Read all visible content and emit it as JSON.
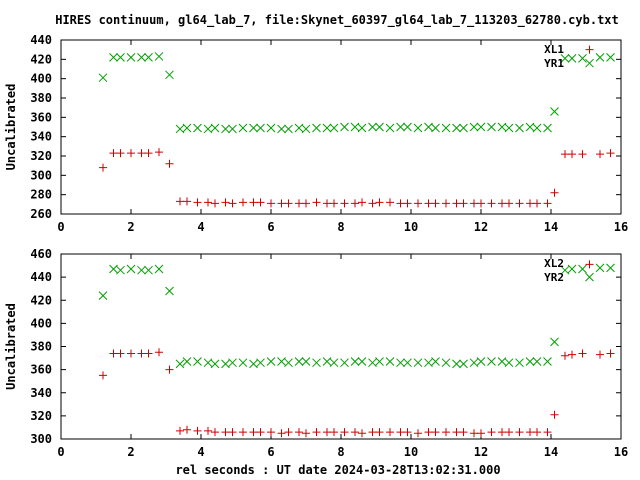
{
  "title": "HIRES continuum, gl64_lab_7, file:Skynet_60397_gl64_lab_7_113203_62780.cyb.txt",
  "xlabel": "rel seconds : UT date 2024-03-28T13:02:31.000",
  "colors": {
    "XL": "#00a000",
    "YR": "#d00000"
  },
  "chart_data": [
    {
      "type": "scatter",
      "title": "HIRES continuum, gl64_lab_7, file:Skynet_60397_gl64_lab_7_113203_62780.cyb.txt",
      "xlabel": "",
      "ylabel": "Uncalibrated",
      "xlim": [
        0,
        16
      ],
      "ylim": [
        260,
        440
      ],
      "xticks": [
        0,
        2,
        4,
        6,
        8,
        10,
        12,
        14,
        16
      ],
      "yticks": [
        260,
        280,
        300,
        320,
        340,
        360,
        380,
        400,
        420,
        440
      ],
      "grid": false,
      "legend": "top-right",
      "series": [
        {
          "name": "XL1",
          "marker": "x",
          "color": "#00a000",
          "x": [
            1.2,
            1.5,
            1.7,
            2.0,
            2.3,
            2.5,
            2.8,
            3.1,
            3.4,
            3.6,
            3.9,
            4.2,
            4.4,
            4.7,
            4.9,
            5.2,
            5.5,
            5.7,
            6.0,
            6.3,
            6.5,
            6.8,
            7.0,
            7.3,
            7.6,
            7.8,
            8.1,
            8.4,
            8.6,
            8.9,
            9.1,
            9.4,
            9.7,
            9.9,
            10.2,
            10.5,
            10.7,
            11.0,
            11.3,
            11.5,
            11.8,
            12.0,
            12.3,
            12.6,
            12.8,
            13.1,
            13.4,
            13.6,
            13.9,
            14.1,
            14.4,
            14.6,
            14.9,
            15.1,
            15.4,
            15.7
          ],
          "y": [
            401,
            422,
            422,
            422,
            422,
            422,
            423,
            404,
            348,
            349,
            349,
            348,
            349,
            348,
            348,
            349,
            349,
            349,
            349,
            348,
            348,
            349,
            348,
            349,
            349,
            349,
            350,
            350,
            349,
            350,
            350,
            349,
            350,
            350,
            349,
            350,
            349,
            349,
            349,
            349,
            350,
            350,
            350,
            350,
            349,
            349,
            350,
            349,
            349,
            366,
            421,
            421,
            421,
            416,
            422,
            422
          ]
        },
        {
          "name": "YR1",
          "marker": "+",
          "color": "#d00000",
          "x": [
            1.2,
            1.5,
            1.7,
            2.0,
            2.3,
            2.5,
            2.8,
            3.1,
            3.4,
            3.6,
            3.9,
            4.2,
            4.4,
            4.7,
            4.9,
            5.2,
            5.5,
            5.7,
            6.0,
            6.3,
            6.5,
            6.8,
            7.0,
            7.3,
            7.6,
            7.8,
            8.1,
            8.4,
            8.6,
            8.9,
            9.1,
            9.4,
            9.7,
            9.9,
            10.2,
            10.5,
            10.7,
            11.0,
            11.3,
            11.5,
            11.8,
            12.0,
            12.3,
            12.6,
            12.8,
            13.1,
            13.4,
            13.6,
            13.9,
            14.1,
            14.4,
            14.6,
            14.9,
            15.1,
            15.4,
            15.7
          ],
          "y": [
            308,
            323,
            323,
            323,
            323,
            323,
            324,
            312,
            273,
            273,
            272,
            272,
            271,
            272,
            271,
            272,
            272,
            272,
            271,
            271,
            271,
            271,
            271,
            272,
            271,
            271,
            271,
            271,
            272,
            271,
            272,
            272,
            271,
            271,
            271,
            271,
            271,
            271,
            271,
            271,
            271,
            271,
            271,
            271,
            271,
            271,
            271,
            271,
            271,
            282,
            322,
            322,
            322,
            430,
            322,
            323
          ]
        }
      ]
    },
    {
      "type": "scatter",
      "xlabel": "rel seconds : UT date 2024-03-28T13:02:31.000",
      "ylabel": "Uncalibrated",
      "xlim": [
        0,
        16
      ],
      "ylim": [
        300,
        460
      ],
      "xticks": [
        0,
        2,
        4,
        6,
        8,
        10,
        12,
        14,
        16
      ],
      "yticks": [
        300,
        320,
        340,
        360,
        380,
        400,
        420,
        440,
        460
      ],
      "grid": false,
      "legend": "top-right",
      "series": [
        {
          "name": "XL2",
          "marker": "x",
          "color": "#00a000",
          "x": [
            1.2,
            1.5,
            1.7,
            2.0,
            2.3,
            2.5,
            2.8,
            3.1,
            3.4,
            3.6,
            3.9,
            4.2,
            4.4,
            4.7,
            4.9,
            5.2,
            5.5,
            5.7,
            6.0,
            6.3,
            6.5,
            6.8,
            7.0,
            7.3,
            7.6,
            7.8,
            8.1,
            8.4,
            8.6,
            8.9,
            9.1,
            9.4,
            9.7,
            9.9,
            10.2,
            10.5,
            10.7,
            11.0,
            11.3,
            11.5,
            11.8,
            12.0,
            12.3,
            12.6,
            12.8,
            13.1,
            13.4,
            13.6,
            13.9,
            14.1,
            14.4,
            14.6,
            14.9,
            15.1,
            15.4,
            15.7
          ],
          "y": [
            424,
            447,
            446,
            447,
            446,
            446,
            447,
            428,
            365,
            367,
            367,
            366,
            365,
            365,
            366,
            366,
            365,
            366,
            367,
            367,
            366,
            367,
            367,
            366,
            367,
            366,
            366,
            367,
            367,
            366,
            367,
            367,
            366,
            366,
            366,
            366,
            367,
            366,
            365,
            365,
            366,
            367,
            367,
            367,
            366,
            366,
            367,
            367,
            367,
            384,
            446,
            447,
            447,
            440,
            448,
            448
          ]
        },
        {
          "name": "YR2",
          "marker": "+",
          "color": "#d00000",
          "x": [
            1.2,
            1.5,
            1.7,
            2.0,
            2.3,
            2.5,
            2.8,
            3.1,
            3.4,
            3.6,
            3.9,
            4.2,
            4.4,
            4.7,
            4.9,
            5.2,
            5.5,
            5.7,
            6.0,
            6.3,
            6.5,
            6.8,
            7.0,
            7.3,
            7.6,
            7.8,
            8.1,
            8.4,
            8.6,
            8.9,
            9.1,
            9.4,
            9.7,
            9.9,
            10.2,
            10.5,
            10.7,
            11.0,
            11.3,
            11.5,
            11.8,
            12.0,
            12.3,
            12.6,
            12.8,
            13.1,
            13.4,
            13.6,
            13.9,
            14.1,
            14.4,
            14.6,
            14.9,
            15.1,
            15.4,
            15.7
          ],
          "y": [
            355,
            374,
            374,
            374,
            374,
            374,
            375,
            360,
            307,
            308,
            307,
            307,
            306,
            306,
            306,
            306,
            306,
            306,
            306,
            305,
            306,
            306,
            305,
            306,
            306,
            306,
            306,
            306,
            305,
            306,
            306,
            306,
            306,
            306,
            305,
            306,
            306,
            306,
            306,
            306,
            305,
            305,
            306,
            306,
            306,
            306,
            306,
            306,
            306,
            321,
            372,
            373,
            374,
            451,
            373,
            374
          ]
        }
      ]
    }
  ]
}
